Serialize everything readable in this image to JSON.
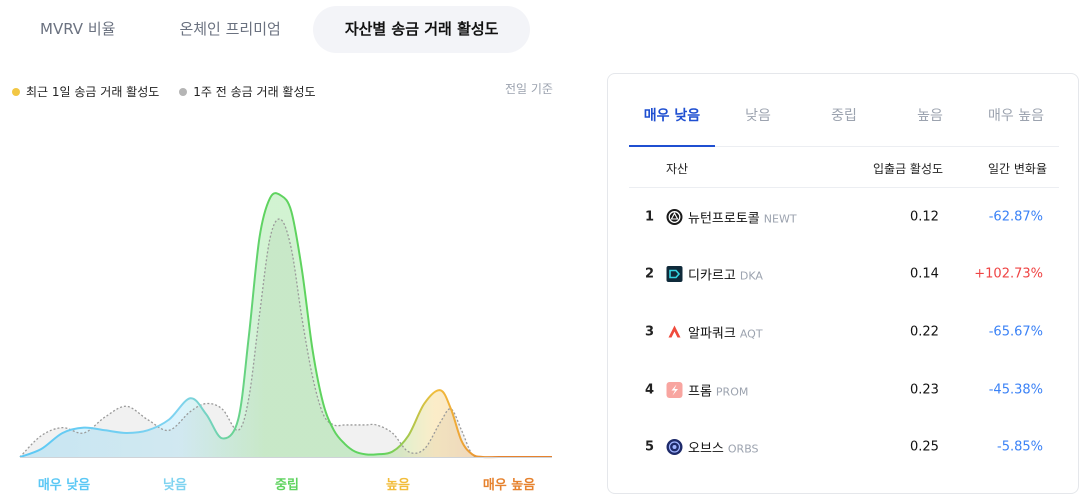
{
  "tabs": [
    {
      "label": "MVRV 비율",
      "active": false
    },
    {
      "label": "온체인 프리미엄",
      "active": false
    },
    {
      "label": "자산별 송금 거래 활성도",
      "active": true
    }
  ],
  "legend": {
    "current": "최근 1일 송금 거래 활성도",
    "previous": "1주 전 송금 거래 활성도",
    "basis": "전일 기준"
  },
  "colors": {
    "very_low": "#5bc8f5",
    "low": "#7fd3f0",
    "mid": "#5fd35f",
    "high": "#f2bd3c",
    "very_high": "#e6822e",
    "previous_line": "#9a9a9a",
    "accent": "#1f4fd1",
    "negative": "#3b82f6",
    "positive": "#ef4444"
  },
  "chart_data": {
    "type": "area",
    "categories": [
      "매우 낮음",
      "낮음",
      "중립",
      "높음",
      "매우 높음"
    ],
    "category_colors": [
      "#5bc8f5",
      "#7fd3f0",
      "#5fd35f",
      "#f2bd3c",
      "#e6822e"
    ],
    "x_range": [
      0,
      100
    ],
    "y_range": [
      0,
      100
    ],
    "grid": false,
    "legend_position": "top-left",
    "series": [
      {
        "name": "최근 1일 송금 거래 활성도",
        "x": [
          0,
          4,
          8,
          12,
          16,
          20,
          24,
          28,
          32,
          35,
          38,
          41,
          43,
          45,
          47,
          49,
          51,
          53,
          55,
          57,
          59,
          61,
          63,
          65,
          67,
          70,
          73,
          76,
          79,
          81,
          83,
          85,
          87,
          90,
          95,
          100
        ],
        "values": [
          0,
          3,
          9,
          11,
          10,
          9,
          10,
          14,
          22,
          16,
          7,
          14,
          45,
          82,
          97,
          98,
          92,
          70,
          40,
          20,
          10,
          5,
          2,
          1,
          1,
          2,
          8,
          20,
          25,
          18,
          6,
          1,
          0,
          0,
          0,
          0
        ]
      },
      {
        "name": "1주 전 송금 거래 활성도",
        "x": [
          0,
          4,
          8,
          12,
          16,
          20,
          24,
          28,
          32,
          35,
          38,
          41,
          43,
          45,
          47,
          49,
          51,
          53,
          55,
          57,
          59,
          61,
          63,
          65,
          67,
          70,
          73,
          76,
          79,
          81,
          83,
          85,
          87,
          90,
          95,
          100
        ],
        "values": [
          0,
          8,
          11,
          9,
          15,
          19,
          14,
          10,
          17,
          20,
          18,
          10,
          22,
          53,
          82,
          89,
          78,
          52,
          30,
          16,
          12,
          12,
          12,
          12,
          12,
          9,
          2,
          3,
          13,
          18,
          10,
          1,
          0,
          0,
          0,
          0
        ]
      }
    ]
  },
  "panel": {
    "tabs": [
      {
        "label": "매우 낮음",
        "active": true
      },
      {
        "label": "낮음",
        "active": false
      },
      {
        "label": "중립",
        "active": false
      },
      {
        "label": "높음",
        "active": false
      },
      {
        "label": "매우 높음",
        "active": false
      }
    ],
    "headers": {
      "asset": "자산",
      "activity": "입출금 활성도",
      "change": "일간 변화율"
    },
    "rows": [
      {
        "rank": "1",
        "name": "뉴턴프로토콜",
        "symbol": "NEWT",
        "activity": "0.12",
        "change": "-62.87%",
        "direction": "down",
        "icon": "newt-icon"
      },
      {
        "rank": "2",
        "name": "디카르고",
        "symbol": "DKA",
        "activity": "0.14",
        "change": "+102.73%",
        "direction": "up",
        "icon": "dka-icon"
      },
      {
        "rank": "3",
        "name": "알파쿼크",
        "symbol": "AQT",
        "activity": "0.22",
        "change": "-65.67%",
        "direction": "down",
        "icon": "aqt-icon"
      },
      {
        "rank": "4",
        "name": "프롬",
        "symbol": "PROM",
        "activity": "0.23",
        "change": "-45.38%",
        "direction": "down",
        "icon": "prom-icon"
      },
      {
        "rank": "5",
        "name": "오브스",
        "symbol": "ORBS",
        "activity": "0.25",
        "change": "-5.85%",
        "direction": "down",
        "icon": "orbs-icon"
      }
    ]
  }
}
